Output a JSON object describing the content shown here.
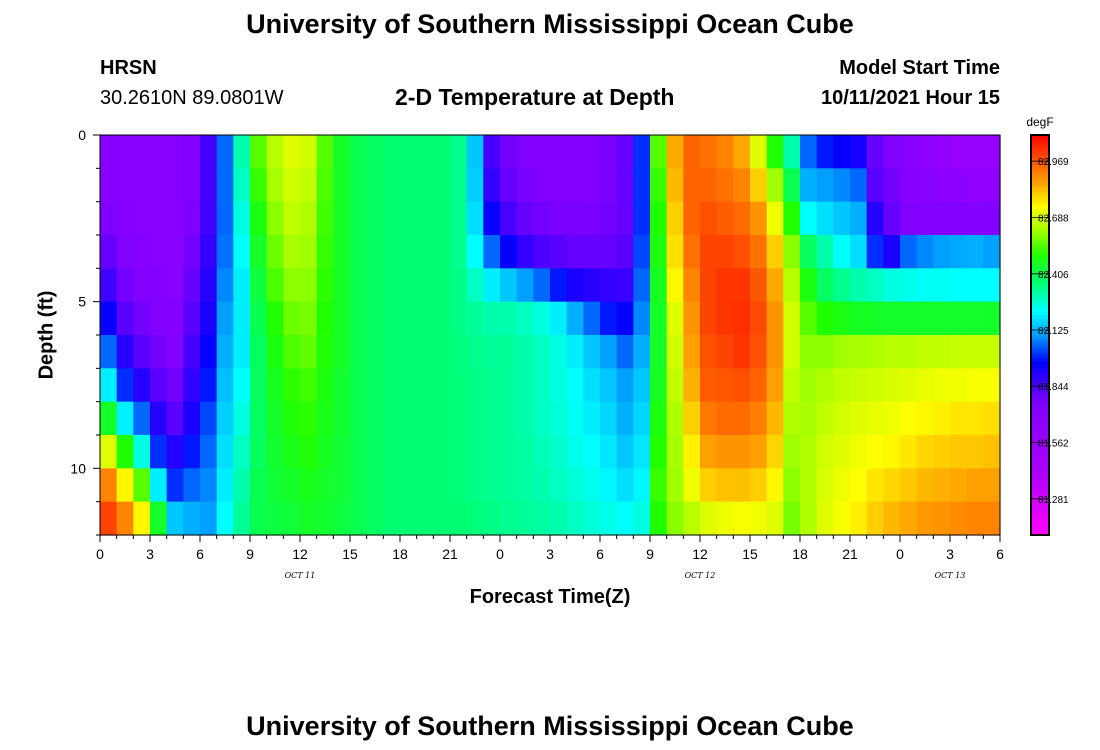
{
  "header": {
    "title": "University of Southern Mississippi Ocean Cube",
    "station": "HRSN",
    "coords": "30.2610N  89.0801W",
    "subtitle": "2-D Temperature at Depth",
    "model_label": "Model Start Time",
    "model_time": "10/11/2021 Hour 15"
  },
  "footer": {
    "title": "University of Southern Mississippi Ocean Cube"
  },
  "chart_data": {
    "type": "heatmap",
    "title": "2-D Temperature at Depth",
    "xlabel": "Forecast Time(Z)",
    "ylabel": "Depth (ft)",
    "x_ticks": [
      "0",
      "3",
      "6",
      "9",
      "12",
      "15",
      "18",
      "21",
      "0",
      "3",
      "6",
      "9",
      "12",
      "15",
      "18",
      "21",
      "0",
      "3",
      "6"
    ],
    "x_dates": [
      {
        "label": "OCT 11",
        "at_hour": 12
      },
      {
        "label": "OCT 12",
        "at_hour": 36
      },
      {
        "label": "OCT 13",
        "at_hour": 51
      }
    ],
    "y_ticks": [
      "0",
      "5",
      "10"
    ],
    "xlim": [
      0,
      54
    ],
    "ylim": [
      0,
      12
    ],
    "colorbar": {
      "unit": "degF",
      "labels": [
        "82.969",
        "82.688",
        "82.406",
        "82.125",
        "81.844",
        "81.562",
        "81.281"
      ],
      "range": [
        81.1,
        83.1
      ]
    },
    "depth_rows": 12,
    "columns": [
      {
        "start": 0,
        "values": [
          81.72,
          81.72,
          81.76,
          81.8,
          81.86,
          81.95,
          82.05,
          82.2,
          82.45,
          82.7,
          82.9,
          83.0
        ]
      },
      {
        "start": 1,
        "values": [
          81.7,
          81.7,
          81.72,
          81.75,
          81.78,
          81.82,
          81.9,
          82.0,
          82.2,
          82.5,
          82.75,
          82.9
        ]
      },
      {
        "start": 2,
        "values": [
          81.7,
          81.7,
          81.7,
          81.72,
          81.74,
          81.78,
          81.82,
          81.9,
          82.05,
          82.25,
          82.55,
          82.75
        ]
      },
      {
        "start": 3,
        "values": [
          81.7,
          81.7,
          81.7,
          81.7,
          81.72,
          81.74,
          81.78,
          81.82,
          81.9,
          82.0,
          82.2,
          82.45
        ]
      },
      {
        "start": 4,
        "values": [
          81.7,
          81.7,
          81.7,
          81.7,
          81.7,
          81.72,
          81.74,
          81.78,
          81.82,
          81.9,
          82.0,
          82.15
        ]
      },
      {
        "start": 5,
        "values": [
          81.75,
          81.75,
          81.76,
          81.78,
          81.8,
          81.82,
          81.85,
          81.88,
          81.92,
          81.98,
          82.05,
          82.12
        ]
      },
      {
        "start": 6,
        "values": [
          81.85,
          81.85,
          81.86,
          81.88,
          81.9,
          81.92,
          81.95,
          81.98,
          82.02,
          82.05,
          82.08,
          82.1
        ]
      },
      {
        "start": 7,
        "values": [
          82.05,
          82.05,
          82.05,
          82.06,
          82.08,
          82.1,
          82.12,
          82.14,
          82.16,
          82.18,
          82.2,
          82.22
        ]
      },
      {
        "start": 8,
        "values": [
          82.3,
          82.28,
          82.25,
          82.22,
          82.2,
          82.2,
          82.2,
          82.22,
          82.25,
          82.28,
          82.3,
          82.32
        ]
      },
      {
        "start": 9,
        "values": [
          82.55,
          82.52,
          82.48,
          82.45,
          82.42,
          82.4,
          82.38,
          82.38,
          82.38,
          82.38,
          82.4,
          82.4
        ]
      },
      {
        "start": 10,
        "values": [
          82.65,
          82.63,
          82.6,
          82.57,
          82.54,
          82.5,
          82.48,
          82.46,
          82.45,
          82.44,
          82.43,
          82.42
        ]
      },
      {
        "start": 11,
        "values": [
          82.7,
          82.68,
          82.66,
          82.63,
          82.6,
          82.57,
          82.54,
          82.51,
          82.49,
          82.47,
          82.45,
          82.43
        ]
      },
      {
        "start": 12,
        "values": [
          82.68,
          82.66,
          82.64,
          82.62,
          82.6,
          82.58,
          82.56,
          82.53,
          82.51,
          82.49,
          82.47,
          82.45
        ]
      },
      {
        "start": 13,
        "values": [
          82.55,
          82.54,
          82.53,
          82.52,
          82.51,
          82.5,
          82.49,
          82.48,
          82.47,
          82.46,
          82.45,
          82.44
        ]
      },
      {
        "start": 14,
        "values": [
          82.45,
          82.45,
          82.45,
          82.45,
          82.45,
          82.45,
          82.45,
          82.44,
          82.44,
          82.43,
          82.43,
          82.42
        ]
      },
      {
        "start": 15,
        "values": [
          82.4,
          82.4,
          82.4,
          82.4,
          82.4,
          82.4,
          82.4,
          82.4,
          82.4,
          82.4,
          82.4,
          82.4
        ]
      },
      {
        "start": 16,
        "values": [
          82.38,
          82.38,
          82.38,
          82.38,
          82.38,
          82.38,
          82.38,
          82.38,
          82.38,
          82.38,
          82.38,
          82.38
        ]
      },
      {
        "start": 17,
        "values": [
          82.36,
          82.36,
          82.36,
          82.36,
          82.36,
          82.36,
          82.36,
          82.36,
          82.36,
          82.36,
          82.36,
          82.36
        ]
      },
      {
        "start": 18,
        "values": [
          82.36,
          82.36,
          82.36,
          82.36,
          82.36,
          82.36,
          82.36,
          82.36,
          82.36,
          82.36,
          82.36,
          82.36
        ]
      },
      {
        "start": 19,
        "values": [
          82.36,
          82.36,
          82.36,
          82.36,
          82.36,
          82.36,
          82.36,
          82.36,
          82.36,
          82.36,
          82.36,
          82.36
        ]
      },
      {
        "start": 20,
        "values": [
          82.36,
          82.36,
          82.36,
          82.36,
          82.36,
          82.36,
          82.36,
          82.36,
          82.36,
          82.36,
          82.36,
          82.36
        ]
      },
      {
        "start": 21,
        "values": [
          82.33,
          82.33,
          82.33,
          82.33,
          82.34,
          82.34,
          82.35,
          82.35,
          82.35,
          82.35,
          82.35,
          82.36
        ]
      },
      {
        "start": 22,
        "values": [
          82.15,
          82.16,
          82.18,
          82.22,
          82.28,
          82.32,
          82.33,
          82.34,
          82.34,
          82.34,
          82.34,
          82.35
        ]
      },
      {
        "start": 23,
        "values": [
          81.85,
          81.88,
          81.95,
          82.05,
          82.2,
          82.3,
          82.32,
          82.33,
          82.33,
          82.33,
          82.33,
          82.34
        ]
      },
      {
        "start": 24,
        "values": [
          81.78,
          81.8,
          81.85,
          81.95,
          82.15,
          82.3,
          82.32,
          82.32,
          82.32,
          82.32,
          82.32,
          82.33
        ]
      },
      {
        "start": 25,
        "values": [
          81.76,
          81.77,
          81.8,
          81.88,
          82.1,
          82.28,
          82.3,
          82.3,
          82.3,
          82.31,
          82.31,
          82.32
        ]
      },
      {
        "start": 26,
        "values": [
          81.75,
          81.76,
          81.78,
          81.84,
          82.05,
          82.25,
          82.28,
          82.28,
          82.28,
          82.29,
          82.3,
          82.31
        ]
      },
      {
        "start": 27,
        "values": [
          81.75,
          81.75,
          81.77,
          81.82,
          81.98,
          82.2,
          82.25,
          82.25,
          82.26,
          82.27,
          82.28,
          82.3
        ]
      },
      {
        "start": 28,
        "values": [
          81.75,
          81.75,
          81.77,
          81.8,
          81.92,
          82.12,
          82.2,
          82.22,
          82.23,
          82.24,
          82.26,
          82.28
        ]
      },
      {
        "start": 29,
        "values": [
          81.76,
          81.76,
          81.77,
          81.8,
          81.9,
          82.05,
          82.15,
          82.18,
          82.2,
          82.22,
          82.24,
          82.26
        ]
      },
      {
        "start": 30,
        "values": [
          81.77,
          81.77,
          81.78,
          81.8,
          81.88,
          81.98,
          82.1,
          82.15,
          82.17,
          82.19,
          82.21,
          82.24
        ]
      },
      {
        "start": 31,
        "values": [
          81.8,
          81.8,
          81.8,
          81.82,
          81.87,
          81.95,
          82.05,
          82.1,
          82.12,
          82.15,
          82.18,
          82.22
        ]
      },
      {
        "start": 32,
        "values": [
          82.0,
          82.0,
          82.0,
          82.02,
          82.05,
          82.08,
          82.12,
          82.15,
          82.17,
          82.19,
          82.21,
          82.25
        ]
      },
      {
        "start": 33,
        "values": [
          82.55,
          82.52,
          82.5,
          82.48,
          82.46,
          82.45,
          82.45,
          82.46,
          82.48,
          82.5,
          82.52,
          82.5
        ]
      },
      {
        "start": 34,
        "values": [
          82.85,
          82.83,
          82.8,
          82.78,
          82.75,
          82.7,
          82.68,
          82.66,
          82.64,
          82.63,
          82.62,
          82.6
        ]
      },
      {
        "start": 35,
        "values": [
          82.95,
          82.95,
          82.95,
          82.93,
          82.9,
          82.88,
          82.86,
          82.84,
          82.8,
          82.76,
          82.72,
          82.65
        ]
      },
      {
        "start": 36,
        "values": [
          82.93,
          82.95,
          82.98,
          83.0,
          83.0,
          83.0,
          82.98,
          82.96,
          82.92,
          82.86,
          82.8,
          82.7
        ]
      },
      {
        "start": 37,
        "values": [
          82.9,
          82.93,
          82.96,
          83.0,
          83.02,
          83.02,
          83.0,
          82.97,
          82.94,
          82.88,
          82.82,
          82.72
        ]
      },
      {
        "start": 38,
        "values": [
          82.85,
          82.9,
          82.94,
          82.98,
          83.02,
          83.03,
          83.02,
          82.98,
          82.94,
          82.88,
          82.82,
          82.73
        ]
      },
      {
        "start": 39,
        "values": [
          82.7,
          82.8,
          82.88,
          82.93,
          82.97,
          82.99,
          82.98,
          82.95,
          82.91,
          82.86,
          82.8,
          82.72
        ]
      },
      {
        "start": 40,
        "values": [
          82.5,
          82.62,
          82.72,
          82.8,
          82.85,
          82.88,
          82.88,
          82.86,
          82.83,
          82.79,
          82.75,
          82.7
        ]
      },
      {
        "start": 41,
        "values": [
          82.3,
          82.4,
          82.5,
          82.6,
          82.65,
          82.68,
          82.68,
          82.66,
          82.64,
          82.62,
          82.6,
          82.58
        ]
      },
      {
        "start": 42,
        "values": [
          82.05,
          82.12,
          82.22,
          82.38,
          82.48,
          82.55,
          82.6,
          82.62,
          82.63,
          82.64,
          82.64,
          82.64
        ]
      },
      {
        "start": 43,
        "values": [
          81.98,
          82.1,
          82.18,
          82.3,
          82.38,
          82.5,
          82.6,
          82.64,
          82.66,
          82.68,
          82.69,
          82.7
        ]
      },
      {
        "start": 44,
        "values": [
          81.95,
          82.08,
          82.15,
          82.22,
          82.33,
          82.48,
          82.62,
          82.66,
          82.68,
          82.7,
          82.72,
          82.73
        ]
      },
      {
        "start": 45,
        "values": [
          81.93,
          82.05,
          82.12,
          82.18,
          82.3,
          82.46,
          82.63,
          82.67,
          82.7,
          82.72,
          82.74,
          82.76
        ]
      },
      {
        "start": 46,
        "values": [
          81.8,
          81.82,
          81.9,
          82.0,
          82.28,
          82.45,
          82.64,
          82.68,
          82.71,
          82.74,
          82.77,
          82.8
        ]
      },
      {
        "start": 47,
        "values": [
          81.75,
          81.78,
          81.8,
          81.92,
          82.25,
          82.45,
          82.65,
          82.69,
          82.72,
          82.75,
          82.79,
          82.83
        ]
      },
      {
        "start": 48,
        "values": [
          81.7,
          81.72,
          81.76,
          82.05,
          82.24,
          82.45,
          82.65,
          82.7,
          82.74,
          82.77,
          82.81,
          82.85
        ]
      },
      {
        "start": 49,
        "values": [
          81.66,
          81.7,
          81.75,
          82.08,
          82.23,
          82.45,
          82.66,
          82.71,
          82.75,
          82.79,
          82.83,
          82.87
        ]
      },
      {
        "start": 50,
        "values": [
          81.62,
          81.68,
          81.74,
          82.1,
          82.23,
          82.45,
          82.66,
          82.72,
          82.76,
          82.8,
          82.84,
          82.88
        ]
      },
      {
        "start": 51,
        "values": [
          81.6,
          81.66,
          81.73,
          82.11,
          82.22,
          82.45,
          82.67,
          82.72,
          82.77,
          82.81,
          82.85,
          82.89
        ]
      },
      {
        "start": 52,
        "values": [
          81.6,
          81.65,
          81.72,
          82.12,
          82.22,
          82.45,
          82.67,
          82.73,
          82.77,
          82.81,
          82.86,
          82.9
        ]
      },
      {
        "start": 53,
        "values": [
          81.62,
          81.66,
          81.74,
          82.1,
          82.22,
          82.45,
          82.67,
          82.73,
          82.78,
          82.82,
          82.86,
          82.9
        ]
      }
    ]
  }
}
